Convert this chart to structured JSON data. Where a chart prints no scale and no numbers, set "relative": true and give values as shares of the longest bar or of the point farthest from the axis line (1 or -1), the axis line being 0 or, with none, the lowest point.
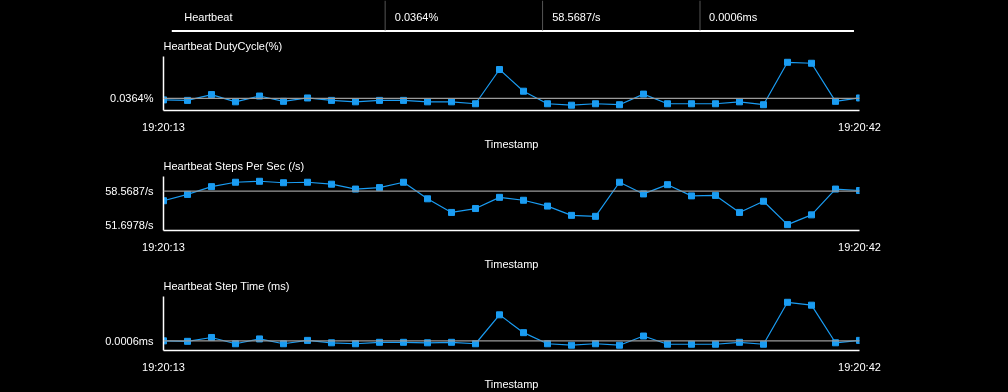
{
  "chart_data": [
    {
      "type": "other",
      "annotations": [
        "Heartbeat",
        "0.0364%",
        "58.5687/s",
        "0.0006ms"
      ]
    },
    {
      "type": "line",
      "title": "Heartbeat DutyCycle(%)",
      "xlabel": "Timestamp",
      "relative": true,
      "marker": "square",
      "annotations": [
        "0.0364%"
      ],
      "categories": [
        "19:20:13",
        null,
        null,
        null,
        null,
        null,
        null,
        null,
        null,
        null,
        null,
        null,
        null,
        null,
        null,
        null,
        null,
        null,
        null,
        null,
        null,
        null,
        null,
        null,
        null,
        null,
        null,
        null,
        null,
        "19:20:42"
      ],
      "series": [
        {
          "color": "#1a9cf2",
          "values": [
            0.22,
            0.21,
            0.33,
            0.18,
            0.3,
            0.19,
            0.26,
            0.21,
            0.18,
            0.21,
            0.21,
            0.18,
            0.18,
            0.14,
            0.85,
            0.4,
            0.14,
            0.11,
            0.14,
            0.12,
            0.34,
            0.14,
            0.14,
            0.14,
            0.18,
            0.12,
            1.0,
            0.98,
            0.19,
            0.26
          ]
        }
      ],
      "ref_lines": [
        {
          "axis": "y",
          "value": 0.25,
          "color": "#9a9a9a"
        }
      ]
    },
    {
      "type": "line",
      "title": "Heartbeat Steps Per Sec (/s)",
      "xlabel": "Timestamp",
      "marker": "square",
      "categories": [
        "19:20:13",
        null,
        null,
        null,
        null,
        null,
        null,
        null,
        null,
        null,
        null,
        null,
        null,
        null,
        null,
        null,
        null,
        null,
        null,
        null,
        null,
        null,
        null,
        null,
        null,
        null,
        null,
        null,
        null,
        "19:20:42"
      ],
      "series": [
        {
          "color": "#1a9cf2",
          "values": [
            56.6,
            57.9,
            59.5,
            60.4,
            60.6,
            60.3,
            60.4,
            60.0,
            59.0,
            59.3,
            60.4,
            57.0,
            54.2,
            55.0,
            57.3,
            56.7,
            55.5,
            53.6,
            53.4,
            60.4,
            58.0,
            59.9,
            57.6,
            57.7,
            54.2,
            56.5,
            51.7,
            53.7,
            59.0,
            58.7
          ]
        }
      ],
      "ylim": [
        50.49,
        61.58
      ],
      "yticks": [
        {
          "value": 51.6978,
          "label": "51.6978/s"
        },
        {
          "value": 58.5687,
          "label": "58.5687/s"
        }
      ],
      "ref_lines": [
        {
          "axis": "y",
          "value": 58.5687,
          "color": "#9a9a9a"
        }
      ]
    },
    {
      "type": "line",
      "title": "Heartbeat Step Time (ms)",
      "xlabel": "Timestamp",
      "relative": true,
      "marker": "square",
      "annotations": [
        "0.0006ms"
      ],
      "categories": [
        "19:20:13",
        null,
        null,
        null,
        null,
        null,
        null,
        null,
        null,
        null,
        null,
        null,
        null,
        null,
        null,
        null,
        null,
        null,
        null,
        null,
        null,
        null,
        null,
        null,
        null,
        null,
        null,
        null,
        null,
        "19:20:42"
      ],
      "series": [
        {
          "color": "#1a9cf2",
          "values": [
            0.2,
            0.19,
            0.27,
            0.14,
            0.24,
            0.14,
            0.21,
            0.16,
            0.14,
            0.17,
            0.17,
            0.16,
            0.17,
            0.14,
            0.74,
            0.37,
            0.14,
            0.11,
            0.14,
            0.11,
            0.3,
            0.13,
            0.13,
            0.13,
            0.17,
            0.13,
            1.0,
            0.94,
            0.16,
            0.21
          ]
        }
      ],
      "ref_lines": [
        {
          "axis": "y",
          "value": 0.2,
          "color": "#9a9a9a"
        }
      ]
    }
  ]
}
